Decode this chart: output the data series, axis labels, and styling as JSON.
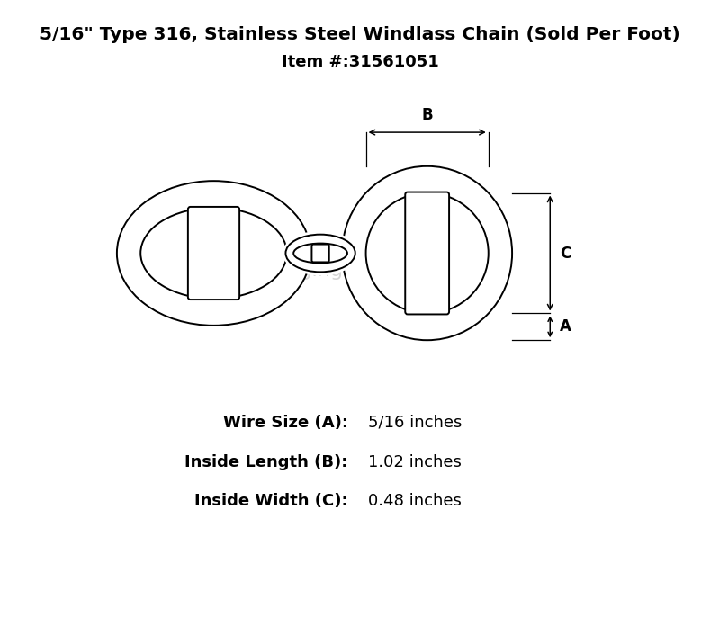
{
  "title_line1": "5/16\" Type 316, Stainless Steel Windlass Chain (Sold Per Foot)",
  "title_line2": "Item #:31561051",
  "specs": [
    {
      "label": "Wire Size (A):",
      "value": "5/16 inches"
    },
    {
      "label": "Inside Length (B):",
      "value": "1.02 inches"
    },
    {
      "label": "Inside Width (C):",
      "value": "0.48 inches"
    }
  ],
  "bg_color": "#ffffff",
  "line_color": "#000000",
  "watermark_color": "#cccccc",
  "title_fontsize": 14.5,
  "item_fontsize": 13,
  "spec_label_fontsize": 13,
  "spec_value_fontsize": 13
}
